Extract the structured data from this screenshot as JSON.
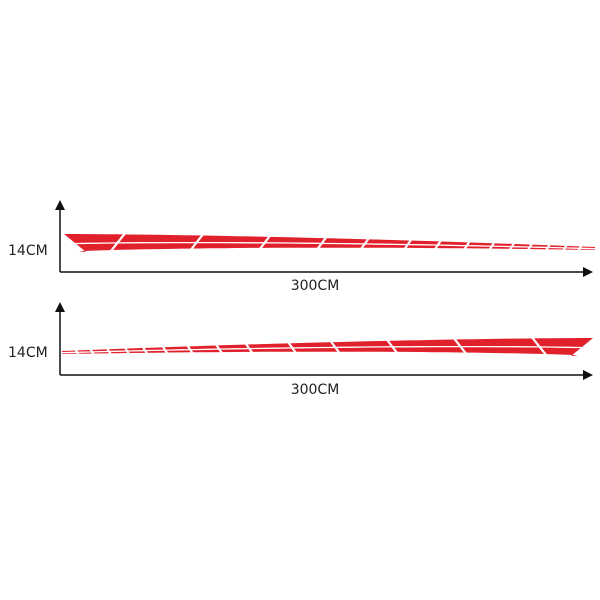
{
  "diagrams": [
    {
      "height_label": "14CM",
      "width_label": "300CM",
      "orientation": "left"
    },
    {
      "height_label": "14CM",
      "width_label": "300CM",
      "orientation": "right"
    }
  ],
  "colors": {
    "stripe": "#e0202a",
    "axis": "#111111",
    "background": "#ffffff"
  }
}
